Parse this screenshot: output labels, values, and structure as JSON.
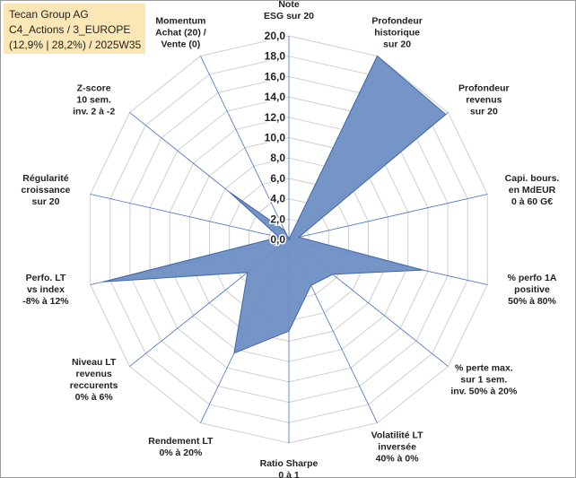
{
  "chart_data": {
    "type": "radar",
    "title": [
      "Tecan Group AG",
      "C4_Actions / 3_EUROPE",
      "(12,9% | 28,2%) / 2025W35"
    ],
    "categories": [
      [
        "Note",
        "ESG sur 20"
      ],
      [
        "Profondeur",
        "historique",
        "sur 20"
      ],
      [
        "Profondeur",
        "revenus",
        "sur 20"
      ],
      [
        "Capi. bours.",
        "en MdEUR",
        "0 à 60 G€"
      ],
      [
        "% perfo 1A",
        "positive",
        "50% à 80%"
      ],
      [
        "% perte max.",
        "sur 1 sem.",
        "inv. 50% à 20%"
      ],
      [
        "Volatilité LT",
        "inversée",
        "40% à 0%"
      ],
      [
        "Ratio Sharpe",
        "0 à 1"
      ],
      [
        "Rendement LT",
        "0% à 20%"
      ],
      [
        "Niveau LT",
        "revenus",
        "reccurents",
        "0% à 6%"
      ],
      [
        "Perfo. LT",
        "vs index",
        "-8% à 12%"
      ],
      [
        "Régularité",
        "croissance",
        "sur 20"
      ],
      [
        "Z-score",
        "10 sem.",
        "inv. 2 à -2"
      ],
      [
        "Momentum",
        "Achat (20) /",
        "Vente (0)"
      ]
    ],
    "values": [
      0,
      20,
      19.7,
      1,
      13.5,
      5.5,
      5,
      9,
      12.4,
      5.2,
      18.7,
      1,
      7.5,
      1
    ],
    "color": "#6f8fc4",
    "ylim": [
      0,
      20
    ],
    "yticks": [
      {
        "value": 0,
        "label": "0,0"
      },
      {
        "value": 2,
        "label": "2,0"
      },
      {
        "value": 4,
        "label": "4,0"
      },
      {
        "value": 6,
        "label": "6,0"
      },
      {
        "value": 8,
        "label": "8,0"
      },
      {
        "value": 10,
        "label": "10,0"
      },
      {
        "value": 12,
        "label": "12,0"
      },
      {
        "value": 14,
        "label": "14,0"
      },
      {
        "value": 16,
        "label": "16,0"
      },
      {
        "value": 18,
        "label": "18,0"
      },
      {
        "value": 20,
        "label": "20,0"
      }
    ],
    "grid": true
  }
}
